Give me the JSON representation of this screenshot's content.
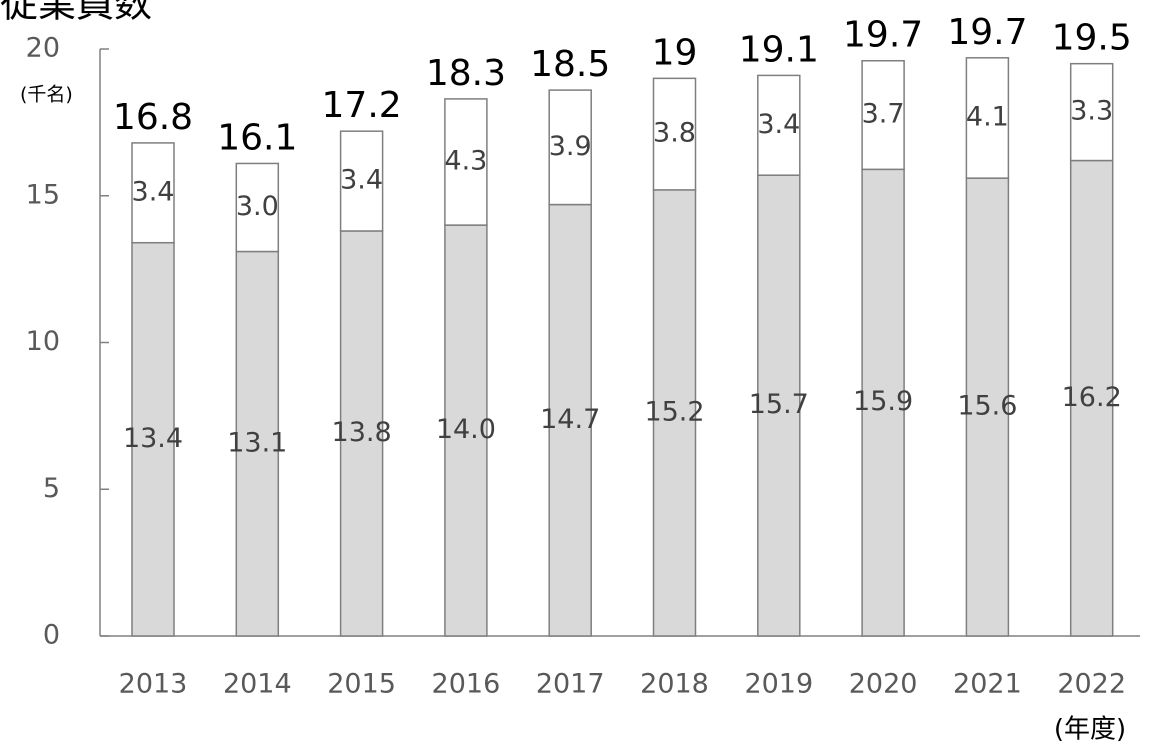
{
  "chart_data": {
    "type": "stacked_bar",
    "title": "従業員数",
    "y_unit": "(千名)",
    "x_unit": "(年度)",
    "categories": [
      "2013",
      "2014",
      "2015",
      "2016",
      "2017",
      "2018",
      "2019",
      "2020",
      "2021",
      "2022"
    ],
    "series": [
      {
        "color": "#d9d9d9",
        "values": [
          13.4,
          13.1,
          13.8,
          14.0,
          14.7,
          15.2,
          15.7,
          15.9,
          15.6,
          16.2
        ],
        "value_labels": [
          "13.4",
          "13.1",
          "13.8",
          "14.0",
          "14.7",
          "15.2",
          "15.7",
          "15.9",
          "15.6",
          "16.2"
        ]
      },
      {
        "color": "#ffffff",
        "values": [
          3.4,
          3.0,
          3.4,
          4.3,
          3.9,
          3.8,
          3.4,
          3.7,
          4.1,
          3.3
        ],
        "value_labels": [
          "3.4",
          "3.0",
          "3.4",
          "4.3",
          "3.9",
          "3.8",
          "3.4",
          "3.7",
          "4.1",
          "3.3"
        ]
      }
    ],
    "totals": [
      16.8,
      16.1,
      17.2,
      18.3,
      18.5,
      19.0,
      19.1,
      19.7,
      19.7,
      19.5
    ],
    "ylim": [
      0,
      20
    ],
    "yticks": [
      0,
      5,
      10,
      15,
      20
    ]
  }
}
